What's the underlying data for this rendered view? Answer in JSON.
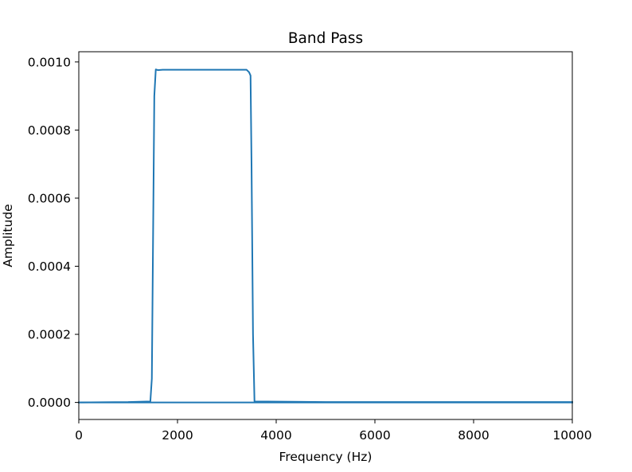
{
  "chart_data": {
    "type": "line",
    "title": "Band Pass",
    "xlabel": "Frequency (Hz)",
    "ylabel": "Amplitude",
    "xlim": [
      0,
      10000
    ],
    "ylim": [
      -5e-05,
      0.00103
    ],
    "xticks": [
      {
        "value": 0,
        "label": "0"
      },
      {
        "value": 2000,
        "label": "2000"
      },
      {
        "value": 4000,
        "label": "4000"
      },
      {
        "value": 6000,
        "label": "6000"
      },
      {
        "value": 8000,
        "label": "8000"
      },
      {
        "value": 10000,
        "label": "10000"
      }
    ],
    "yticks": [
      {
        "value": 0,
        "label": "0.0000"
      },
      {
        "value": 0.0002,
        "label": "0.0002"
      },
      {
        "value": 0.0004,
        "label": "0.0004"
      },
      {
        "value": 0.0006,
        "label": "0.0006"
      },
      {
        "value": 0.0008,
        "label": "0.0008"
      },
      {
        "value": 0.001,
        "label": "0.0010"
      }
    ],
    "grid": false,
    "legend": "none",
    "series": [
      {
        "color": "#1f77b4",
        "x": [
          0,
          1000,
          1450,
          1480,
          1530,
          1560,
          1600,
          1700,
          2000,
          2500,
          3000,
          3400,
          3450,
          3480,
          3500,
          3530,
          3560,
          5000,
          8000,
          10000
        ],
        "y": [
          0,
          1e-06,
          3e-06,
          7e-05,
          0.0009,
          0.000978,
          0.000976,
          0.000977,
          0.000977,
          0.000977,
          0.000977,
          0.000977,
          0.00097,
          0.00096,
          0.0007,
          0.0002,
          3e-06,
          1e-06,
          1e-06,
          1e-06
        ]
      },
      {
        "color": "#1f77b4",
        "x": [
          0,
          10000
        ],
        "y": [
          0,
          0
        ]
      }
    ]
  }
}
